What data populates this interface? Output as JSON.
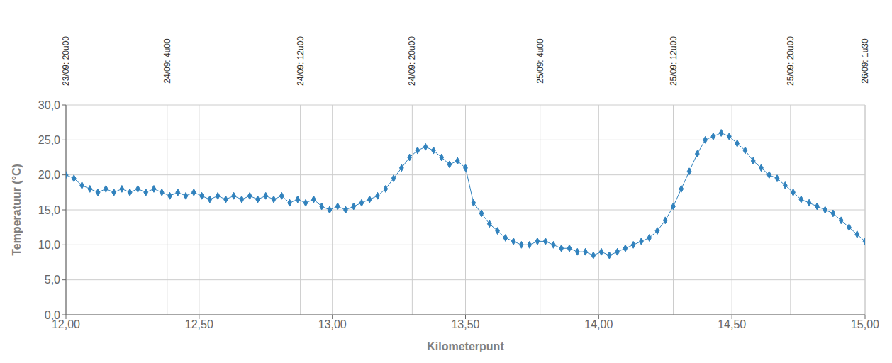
{
  "chart_data": {
    "type": "line",
    "x": [
      12.0,
      12.03,
      12.06,
      12.09,
      12.12,
      12.15,
      12.18,
      12.21,
      12.24,
      12.27,
      12.3,
      12.33,
      12.36,
      12.39,
      12.42,
      12.45,
      12.48,
      12.51,
      12.54,
      12.57,
      12.6,
      12.63,
      12.66,
      12.69,
      12.72,
      12.75,
      12.78,
      12.81,
      12.84,
      12.87,
      12.9,
      12.93,
      12.96,
      12.99,
      13.02,
      13.05,
      13.08,
      13.11,
      13.14,
      13.17,
      13.2,
      13.23,
      13.26,
      13.29,
      13.32,
      13.35,
      13.38,
      13.41,
      13.44,
      13.47,
      13.5,
      13.53,
      13.56,
      13.59,
      13.62,
      13.65,
      13.68,
      13.71,
      13.74,
      13.77,
      13.8,
      13.83,
      13.86,
      13.89,
      13.92,
      13.95,
      13.98,
      14.01,
      14.04,
      14.07,
      14.1,
      14.13,
      14.16,
      14.19,
      14.22,
      14.25,
      14.28,
      14.31,
      14.34,
      14.37,
      14.4,
      14.43,
      14.46,
      14.49,
      14.52,
      14.55,
      14.58,
      14.61,
      14.64,
      14.67,
      14.7,
      14.73,
      14.76,
      14.79,
      14.82,
      14.85,
      14.88,
      14.91,
      14.94,
      14.97,
      15.0
    ],
    "values": [
      20.0,
      19.5,
      18.5,
      18.0,
      17.5,
      18.0,
      17.5,
      18.0,
      17.5,
      18.0,
      17.5,
      18.0,
      17.5,
      17.0,
      17.5,
      17.0,
      17.5,
      17.0,
      16.5,
      17.0,
      16.5,
      17.0,
      16.5,
      17.0,
      16.5,
      17.0,
      16.5,
      17.0,
      16.0,
      16.5,
      16.0,
      16.5,
      15.5,
      15.0,
      15.5,
      15.0,
      15.5,
      16.0,
      16.5,
      17.0,
      18.0,
      19.5,
      21.0,
      22.5,
      23.5,
      24.0,
      23.5,
      22.5,
      21.5,
      22.0,
      21.0,
      16.0,
      14.5,
      13.0,
      12.0,
      11.0,
      10.5,
      10.0,
      10.0,
      10.5,
      10.5,
      10.0,
      9.5,
      9.5,
      9.0,
      9.0,
      8.5,
      9.0,
      8.5,
      9.0,
      9.5,
      10.0,
      10.5,
      11.0,
      12.0,
      13.5,
      15.5,
      18.0,
      20.5,
      23.0,
      25.0,
      25.5,
      26.0,
      25.5,
      24.5,
      23.5,
      22.0,
      21.0,
      20.0,
      19.5,
      18.5,
      17.5,
      16.5,
      16.0,
      15.5,
      15.0,
      14.5,
      13.5,
      12.5,
      11.5,
      10.5
    ],
    "xlabel": "Kilometerpunt",
    "ylabel": "Temperatuur (°C)",
    "xlim": [
      12.0,
      15.0
    ],
    "ylim": [
      0.0,
      30.0
    ],
    "xticks": [
      {
        "value": 12.0,
        "label": "12,00"
      },
      {
        "value": 12.5,
        "label": "12,50"
      },
      {
        "value": 13.0,
        "label": "13,00"
      },
      {
        "value": 13.5,
        "label": "13,50"
      },
      {
        "value": 14.0,
        "label": "14,00"
      },
      {
        "value": 14.5,
        "label": "14,50"
      },
      {
        "value": 15.0,
        "label": "15,00"
      }
    ],
    "yticks": [
      {
        "value": 0.0,
        "label": "0,0"
      },
      {
        "value": 5.0,
        "label": "5,0"
      },
      {
        "value": 10.0,
        "label": "10,0"
      },
      {
        "value": 15.0,
        "label": "15,0"
      },
      {
        "value": 20.0,
        "label": "20,0"
      },
      {
        "value": 25.0,
        "label": "25,0"
      },
      {
        "value": 30.0,
        "label": "30,0"
      }
    ],
    "grid": true,
    "marker": "diamond",
    "annotations": [
      {
        "x": 12.0,
        "label": "23/09: 20u00"
      },
      {
        "x": 12.38,
        "label": "24/09: 4u00"
      },
      {
        "x": 12.88,
        "label": "24/09: 12u00"
      },
      {
        "x": 13.3,
        "label": "24/09: 20u00"
      },
      {
        "x": 13.78,
        "label": "25/09: 4u00"
      },
      {
        "x": 14.28,
        "label": "25/09: 12u00"
      },
      {
        "x": 14.72,
        "label": "25/09: 20u00"
      },
      {
        "x": 15.0,
        "label": "26/09: 1u30"
      }
    ]
  }
}
